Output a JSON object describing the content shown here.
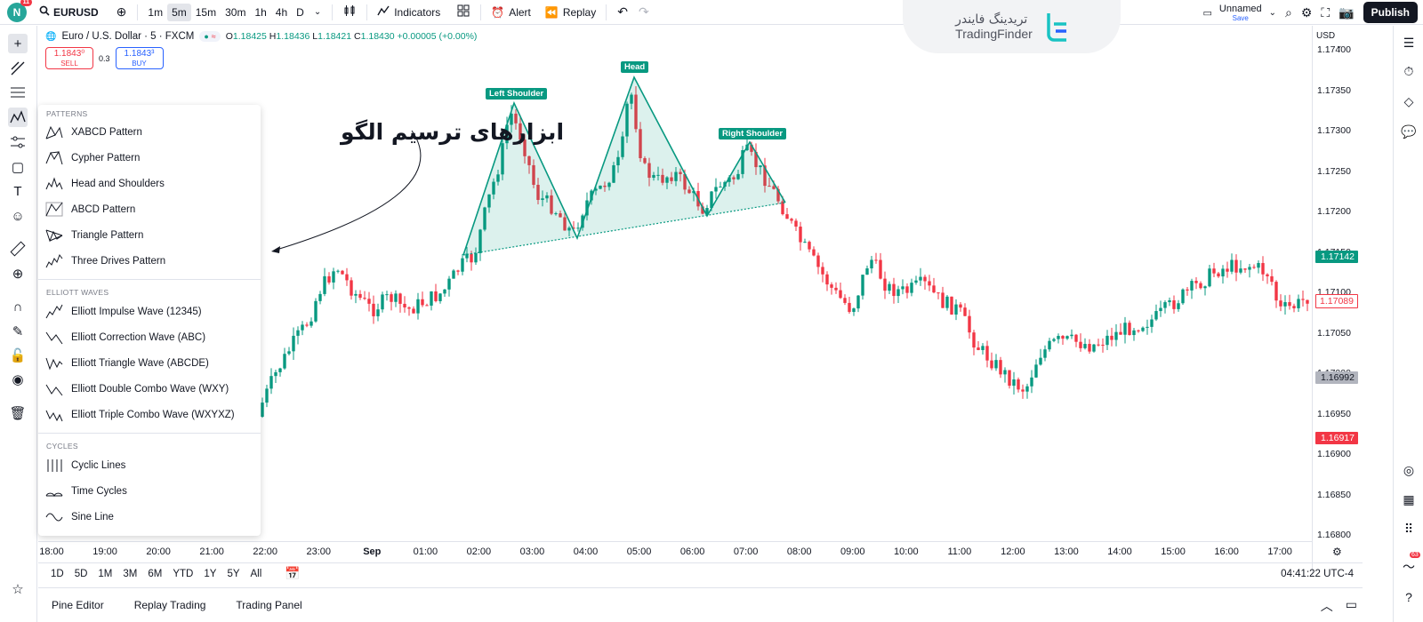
{
  "topbar": {
    "avatar_letter": "N",
    "avatar_badge": "11",
    "symbol": "EURUSD",
    "intervals": [
      "1m",
      "5m",
      "15m",
      "30m",
      "1h",
      "4h",
      "D"
    ],
    "active_interval": "5m",
    "indicators_label": "Indicators",
    "alert_label": "Alert",
    "replay_label": "Replay",
    "brand_fa": "تریدینگ فایندر",
    "brand_en": "TradingFinder",
    "layout_name": "Unnamed",
    "layout_sub": "Save",
    "publish_label": "Publish"
  },
  "legend": {
    "title": "Euro / U.S. Dollar · 5 · FXCM",
    "o": "1.18425",
    "h": "1.18436",
    "l": "1.18421",
    "c": "1.18430",
    "change": "+0.00005 (+0.00%)",
    "o_label": "O",
    "h_label": "H",
    "l_label": "L",
    "c_label": "C"
  },
  "trade": {
    "sell_price": "1.1843⁰",
    "sell_label": "SELL",
    "spread": "0.3",
    "buy_price": "1.1843³",
    "buy_label": "BUY"
  },
  "price_axis": {
    "currency": "USD",
    "labels": [
      "1.17400",
      "1.17350",
      "1.17300",
      "1.17250",
      "1.17200",
      "1.17150",
      "1.17100",
      "1.17050",
      "1.17000",
      "1.16950",
      "1.16900",
      "1.16850",
      "1.16800"
    ],
    "tag_green": "1.17142",
    "tag_red_outline": "1.17089",
    "tag_gray": "1.16992",
    "tag_red": "1.16917"
  },
  "time_axis": [
    "18:00",
    "19:00",
    "20:00",
    "21:00",
    "22:00",
    "23:00",
    "Sep",
    "01:00",
    "02:00",
    "03:00",
    "04:00",
    "05:00",
    "06:00",
    "07:00",
    "08:00",
    "09:00",
    "10:00",
    "11:00",
    "12:00",
    "13:00",
    "14:00",
    "15:00",
    "16:00",
    "17:00"
  ],
  "ranges": [
    "1D",
    "5D",
    "1M",
    "3M",
    "6M",
    "YTD",
    "1Y",
    "5Y",
    "All"
  ],
  "clock": "04:41:22 UTC-4",
  "bottom_tabs": [
    "Pine Editor",
    "Replay Trading",
    "Trading Panel"
  ],
  "notifications_count": "63",
  "menu": {
    "patterns_header": "PATTERNS",
    "patterns": [
      "XABCD Pattern",
      "Cypher Pattern",
      "Head and Shoulders",
      "ABCD Pattern",
      "Triangle Pattern",
      "Three Drives Pattern"
    ],
    "elliott_header": "ELLIOTT WAVES",
    "elliott": [
      "Elliott Impulse Wave (12345)",
      "Elliott Correction Wave (ABC)",
      "Elliott Triangle Wave (ABCDE)",
      "Elliott Double Combo Wave (WXY)",
      "Elliott Triple Combo Wave (WXYXZ)"
    ],
    "cycles_header": "CYCLES",
    "cycles": [
      "Cyclic Lines",
      "Time Cycles",
      "Sine Line"
    ]
  },
  "annotation": "ابزارهای ترسیم الگو",
  "pattern_labels": {
    "left": "Left Shoulder",
    "head": "Head",
    "right": "Right Shoulder"
  },
  "colors": {
    "up": "#089981",
    "down": "#f23645",
    "accent": "#2962ff",
    "pattern_fill": "#d9f2ec"
  }
}
